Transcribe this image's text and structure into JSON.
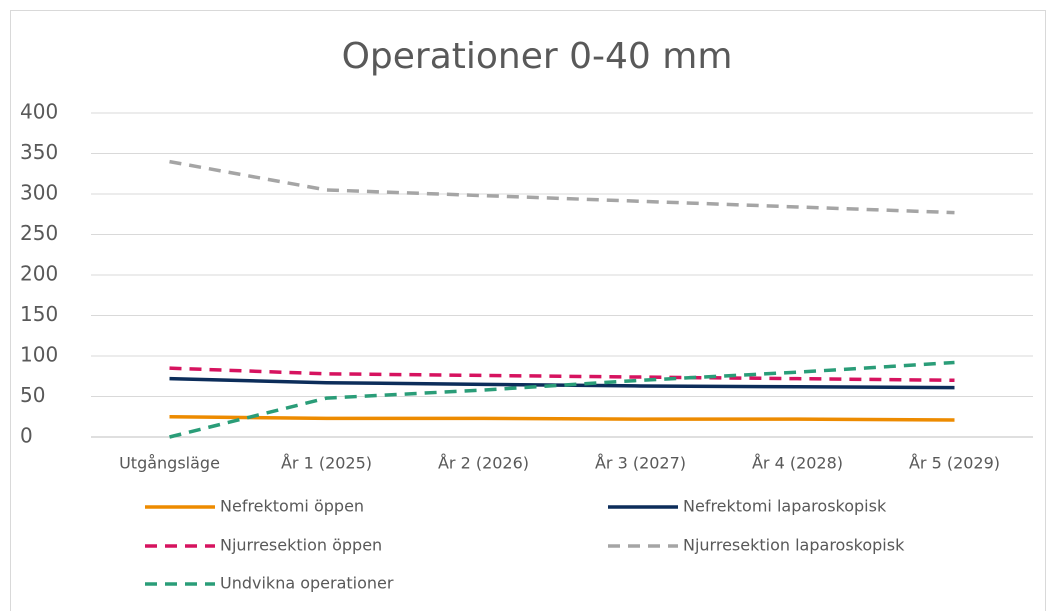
{
  "chart_data": {
    "type": "line",
    "title": "Operationer 0-40 mm",
    "categories": [
      "Utgångsläge",
      "År 1 (2025)",
      "År 2 (2026)",
      "År 3 (2027)",
      "År 4 (2028)",
      "År 5 (2029)"
    ],
    "series": [
      {
        "name": "Nefrektomi öppen",
        "color": "#ed8b00",
        "dashed": false,
        "values": [
          25,
          23,
          23,
          22,
          22,
          21
        ]
      },
      {
        "name": "Nefrektomi laparoskopisk",
        "color": "#0c2d5a",
        "dashed": false,
        "values": [
          72,
          67,
          65,
          63,
          62,
          61
        ]
      },
      {
        "name": "Njurresektion öppen",
        "color": "#d6135f",
        "dashed": true,
        "values": [
          85,
          78,
          76,
          74,
          72,
          70
        ]
      },
      {
        "name": "Njurresektion laparoskopisk",
        "color": "#a5a5a5",
        "dashed": true,
        "values": [
          340,
          305,
          298,
          291,
          284,
          277
        ]
      },
      {
        "name": "Undvikna operationer",
        "color": "#2a9d78",
        "dashed": true,
        "values": [
          0,
          48,
          58,
          70,
          80,
          92
        ]
      }
    ],
    "ylim": [
      0,
      400
    ],
    "yticks": [
      0,
      50,
      100,
      150,
      200,
      250,
      300,
      350,
      400
    ],
    "grid": true
  }
}
